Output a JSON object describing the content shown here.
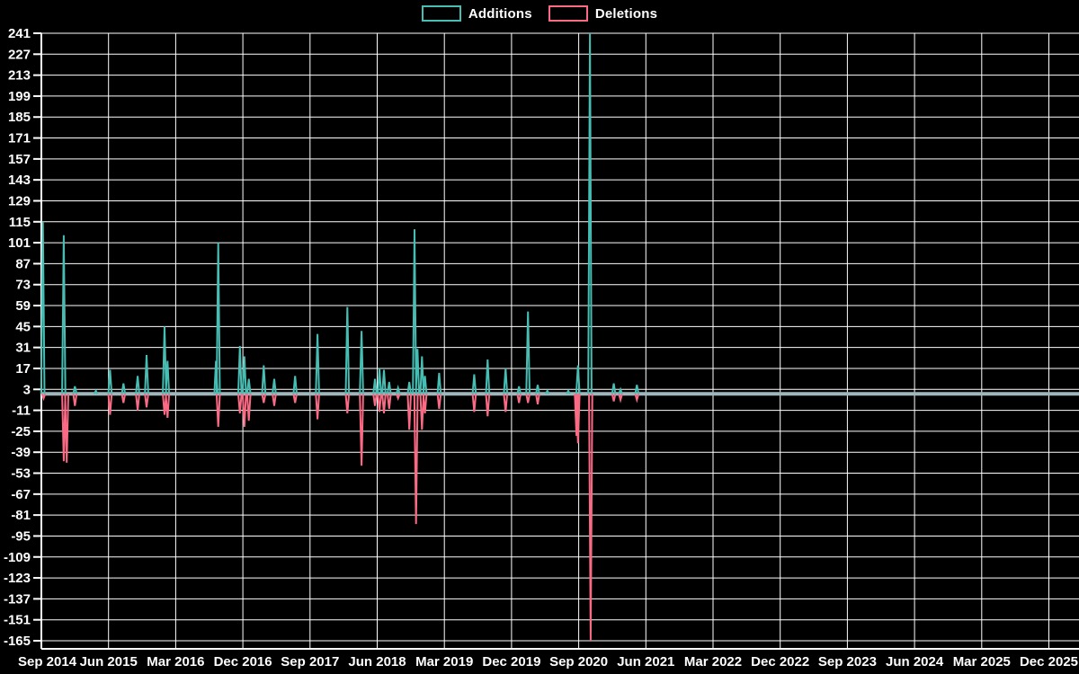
{
  "chart_data": {
    "type": "line",
    "title": "",
    "description": "Weekly code additions and deletions spike chart on black background",
    "colors": {
      "background": "#000000",
      "grid": "#ffffff",
      "axis": "#ffffff",
      "text": "#ffffff",
      "zero_baseline": "#9fb6ba",
      "additions": "#46beb4",
      "deletions": "#fa6a85"
    },
    "x_axis": {
      "start_label": "Sep 2014",
      "months_per_tick": 9,
      "labels": [
        "Sep 2014",
        "Jun 2015",
        "Mar 2016",
        "Dec 2016",
        "Sep 2017",
        "Jun 2018",
        "Mar 2019",
        "Dec 2019",
        "Sep 2020",
        "Jun 2021",
        "Mar 2022",
        "Dec 2022",
        "Sep 2023",
        "Jun 2024",
        "Mar 2025",
        "Dec 2025"
      ]
    },
    "y_axis": {
      "min": -165,
      "max": 241,
      "tick_step": 14,
      "ticks": [
        241,
        227,
        213,
        199,
        185,
        171,
        157,
        143,
        129,
        115,
        101,
        87,
        73,
        59,
        45,
        31,
        17,
        3,
        -11,
        -25,
        -39,
        -53,
        -67,
        -81,
        -95,
        -109,
        -123,
        -137,
        -151,
        -165
      ]
    },
    "baseline_value": 0,
    "legend_position": "top-center",
    "series": [
      {
        "name": "Additions",
        "color": "#46beb4",
        "events_note": "pairs of [months_after_Sep_2014, peak_value]; value is 0 elsewhere",
        "events": [
          [
            0.2,
            115
          ],
          [
            3.0,
            106
          ],
          [
            4.5,
            5
          ],
          [
            7.3,
            2
          ],
          [
            9.2,
            16
          ],
          [
            11.0,
            7
          ],
          [
            12.9,
            12
          ],
          [
            14.1,
            26
          ],
          [
            16.5,
            45
          ],
          [
            16.9,
            22
          ],
          [
            23.4,
            22
          ],
          [
            23.7,
            101
          ],
          [
            26.6,
            32
          ],
          [
            27.2,
            25
          ],
          [
            27.8,
            10
          ],
          [
            29.8,
            19
          ],
          [
            31.2,
            10
          ],
          [
            34.0,
            12
          ],
          [
            37.0,
            40
          ],
          [
            41.0,
            58
          ],
          [
            42.9,
            42
          ],
          [
            44.7,
            10
          ],
          [
            45.3,
            17
          ],
          [
            45.9,
            16
          ],
          [
            46.6,
            8
          ],
          [
            47.8,
            4
          ],
          [
            49.3,
            8
          ],
          [
            50.0,
            110
          ],
          [
            50.4,
            30
          ],
          [
            51.0,
            25
          ],
          [
            51.4,
            12
          ],
          [
            53.3,
            14
          ],
          [
            58.0,
            13
          ],
          [
            59.8,
            23
          ],
          [
            62.2,
            17
          ],
          [
            64.0,
            5
          ],
          [
            65.2,
            55
          ],
          [
            66.5,
            6
          ],
          [
            67.8,
            2
          ],
          [
            70.6,
            2
          ],
          [
            71.9,
            19
          ],
          [
            73.5,
            241
          ],
          [
            76.7,
            7
          ],
          [
            77.6,
            3
          ],
          [
            79.8,
            6
          ]
        ]
      },
      {
        "name": "Deletions",
        "color": "#fa6a85",
        "events_note": "pairs of [months_after_Sep_2014, peak_value]; value is 0 elsewhere",
        "events": [
          [
            0.3,
            -3
          ],
          [
            3.0,
            -45
          ],
          [
            3.4,
            -46
          ],
          [
            4.5,
            -8
          ],
          [
            9.2,
            -14
          ],
          [
            11.0,
            -6
          ],
          [
            12.9,
            -11
          ],
          [
            14.1,
            -9
          ],
          [
            16.5,
            -14
          ],
          [
            16.9,
            -16
          ],
          [
            23.7,
            -22
          ],
          [
            26.6,
            -13
          ],
          [
            27.2,
            -22
          ],
          [
            27.8,
            -18
          ],
          [
            29.8,
            -6
          ],
          [
            31.2,
            -8
          ],
          [
            34.0,
            -6
          ],
          [
            37.0,
            -17
          ],
          [
            41.0,
            -13
          ],
          [
            42.9,
            -48
          ],
          [
            44.7,
            -8
          ],
          [
            45.3,
            -12
          ],
          [
            45.9,
            -13
          ],
          [
            46.6,
            -10
          ],
          [
            47.8,
            -3
          ],
          [
            49.3,
            -24
          ],
          [
            50.2,
            -87
          ],
          [
            51.0,
            -24
          ],
          [
            51.4,
            -13
          ],
          [
            53.3,
            -10
          ],
          [
            58.0,
            -12
          ],
          [
            59.8,
            -15
          ],
          [
            62.2,
            -12
          ],
          [
            64.0,
            -6
          ],
          [
            65.2,
            -6
          ],
          [
            66.5,
            -7
          ],
          [
            71.7,
            -28
          ],
          [
            71.9,
            -33
          ],
          [
            73.6,
            -165
          ],
          [
            76.7,
            -5
          ],
          [
            77.6,
            -4
          ],
          [
            79.8,
            -4
          ]
        ]
      }
    ]
  }
}
